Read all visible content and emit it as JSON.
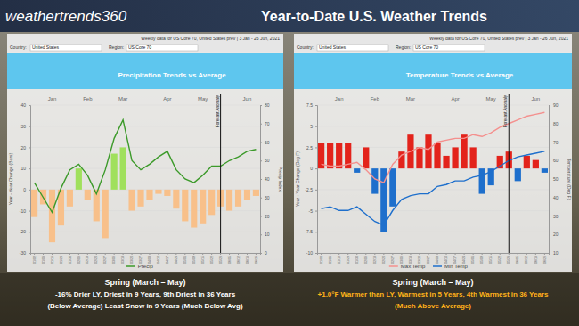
{
  "header": {
    "logo": "weathertrends360",
    "title": "Year-to-Date U.S. Weather Trends"
  },
  "panels": [
    {
      "country_label": "Country:",
      "country": "United States",
      "region_label": "Region:",
      "region": "US Core 70"
    },
    {
      "country_label": "Country:",
      "country": "United States",
      "region_label": "Region:",
      "region": "US Core 70"
    }
  ],
  "chart_data": [
    {
      "type": "bar",
      "title": "Precipitation Trends vs Average",
      "subtitle": "Weekly data for US Core 70, United States prev | 3 Jan - 26 Jun, 2021",
      "y_label": "Year - Year Change (Bars)",
      "y2_label": "Precip Index",
      "categories": [
        "01/02",
        "01/09",
        "01/16",
        "01/23",
        "01/30",
        "02/06",
        "02/13",
        "02/20",
        "02/27",
        "03/06",
        "03/13",
        "03/20",
        "03/27",
        "04/03",
        "04/10",
        "04/17",
        "04/24",
        "05/01",
        "05/08",
        "05/15",
        "05/22",
        "05/29",
        "06/05",
        "06/12",
        "06/19",
        "06/26"
      ],
      "month_labels": [
        {
          "text": "Jan",
          "x": "01/16"
        },
        {
          "text": "Feb",
          "x": "02/13"
        },
        {
          "text": "Mar",
          "x": "03/13"
        },
        {
          "text": "Apr",
          "x": "04/17"
        },
        {
          "text": "May",
          "x": "05/15"
        },
        {
          "text": "Jun",
          "x": "06/19"
        }
      ],
      "annotations": [
        {
          "text": "Forecast Anomaly",
          "x": "05/29"
        }
      ],
      "series": [
        {
          "type": "bar",
          "colors": [
            "#f8c08a",
            "#f8c08a",
            "#f8c08a",
            "#f8c08a",
            "#f8c08a",
            "#a0e05c",
            "#f8c08a",
            "#f8c08a",
            "#f8c08a",
            "#a0e05c",
            "#a0e05c",
            "#f8c08a",
            "#f8c08a",
            "#f8c08a",
            "#f8c08a",
            "#f8c08a",
            "#f8c08a",
            "#f8c08a",
            "#f8c08a",
            "#f8c08a",
            "#f8c08a",
            "#f8c08a",
            "#f8c08a",
            "#f8c08a",
            "#f8c08a",
            "#f8c08a"
          ],
          "values": [
            -13,
            -7,
            -25,
            -17,
            -8,
            10,
            -5,
            -15,
            -23,
            17,
            20,
            -10,
            -8,
            -5,
            -2,
            -3,
            -9,
            -15,
            -18,
            -16,
            -12,
            -8,
            -10,
            -8,
            -5,
            -3
          ]
        },
        {
          "name": "Precip",
          "type": "line",
          "color": "#3c9a2a",
          "axis": "y2",
          "values": [
            38,
            30,
            22,
            35,
            45,
            48,
            42,
            32,
            45,
            62,
            72,
            50,
            45,
            48,
            52,
            55,
            45,
            40,
            38,
            42,
            47,
            47,
            50,
            52,
            55,
            56
          ]
        }
      ],
      "ylim": [
        -30,
        40
      ],
      "yticks": [
        -30,
        -20,
        -10,
        0,
        10,
        20,
        30,
        40
      ],
      "y2lim": [
        0,
        80
      ],
      "y2ticks": [
        0,
        10,
        20,
        30,
        40,
        50,
        60,
        70,
        80
      ],
      "grid": true,
      "legend": "bottom"
    },
    {
      "type": "bar",
      "title": "Temperature Trends vs Average",
      "subtitle": "Weekly data for US Core 70, United States prev | 3 Jan - 26 Jun, 2021",
      "y_label": "Year - Year Change (Deg F)",
      "y2_label": "Temperature (Deg F)",
      "categories": [
        "01/02",
        "01/09",
        "01/16",
        "01/23",
        "01/30",
        "02/06",
        "02/13",
        "02/20",
        "02/27",
        "03/06",
        "03/13",
        "03/20",
        "03/27",
        "04/03",
        "04/10",
        "04/17",
        "04/24",
        "05/01",
        "05/08",
        "05/15",
        "05/22",
        "05/29",
        "06/05",
        "06/12",
        "06/19",
        "06/26"
      ],
      "month_labels": [
        {
          "text": "Jan",
          "x": "01/16"
        },
        {
          "text": "Feb",
          "x": "02/13"
        },
        {
          "text": "Mar",
          "x": "03/13"
        },
        {
          "text": "Apr",
          "x": "04/17"
        },
        {
          "text": "May",
          "x": "05/15"
        },
        {
          "text": "Jun",
          "x": "06/19"
        }
      ],
      "annotations": [
        {
          "text": "Forecast Anomaly",
          "x": "05/29"
        }
      ],
      "series": [
        {
          "type": "bar",
          "colors": [
            "#e3231b",
            "#e3231b",
            "#e3231b",
            "#e3231b",
            "#1e6fcc",
            "#e3231b",
            "#1e6fcc",
            "#1e6fcc",
            "#1e6fcc",
            "#e3231b",
            "#e3231b",
            "#e3231b",
            "#e3231b",
            "#e3231b",
            "#e3231b",
            "#e3231b",
            "#e3231b",
            "#e3231b",
            "#1e6fcc",
            "#1e6fcc",
            "#e3231b",
            "#e3231b",
            "#1e6fcc",
            "#e3231b",
            "#e3231b",
            "#1e6fcc"
          ],
          "values": [
            3,
            3,
            3,
            3,
            -0.5,
            2.5,
            -3,
            -7.5,
            -4.5,
            2,
            4,
            2.5,
            4,
            3,
            1.5,
            2.5,
            4,
            2.5,
            -3,
            -2,
            1.5,
            2,
            -1.5,
            1.5,
            1,
            -0.5
          ]
        },
        {
          "name": "Max Temp",
          "type": "line",
          "color": "#f4908e",
          "axis": "y2",
          "values": [
            58,
            57,
            57,
            58,
            59,
            55,
            50,
            48,
            58,
            63,
            65,
            67,
            66,
            70,
            71,
            72,
            72,
            74,
            73,
            75,
            78,
            80,
            82,
            84,
            85,
            86
          ]
        },
        {
          "name": "Min Temp",
          "type": "line",
          "color": "#1e6fcc",
          "axis": "y2",
          "values": [
            34,
            35,
            33,
            33,
            35,
            31,
            27,
            25,
            33,
            39,
            41,
            42,
            42,
            46,
            47,
            49,
            49,
            51,
            52,
            54,
            57,
            60,
            62,
            63,
            64,
            65
          ]
        }
      ],
      "ylim": [
        -10,
        7.5
      ],
      "yticks": [
        -10,
        -7.5,
        -5,
        -2.5,
        0,
        2.5,
        5,
        7.5
      ],
      "y2lim": [
        10,
        90
      ],
      "y2ticks": [
        10,
        20,
        30,
        40,
        50,
        60,
        70,
        80,
        90
      ],
      "grid": true,
      "legend": "bottom"
    }
  ],
  "captions": [
    {
      "lines": [
        {
          "text": "Spring (March – May)",
          "color": "#ffffff"
        },
        {
          "text": "-16% Drier LY, Driest in 9 Years, 9th Driest in 36 Years",
          "color": "#ffffff"
        },
        {
          "text": "(Below Average) Least Snow in 9 Years (Much Below Avg)",
          "color": "#ffffff"
        }
      ]
    },
    {
      "lines": [
        {
          "text": "Spring (March – May)",
          "color": "#ffffff"
        },
        {
          "text": "+1.0°F Warmer than LY, Warmest in 5 Years, 4th Warmest in 36 Years",
          "color": "#ffb21a"
        },
        {
          "text": "(Much Above Average)",
          "color": "#ffb21a"
        }
      ]
    }
  ]
}
